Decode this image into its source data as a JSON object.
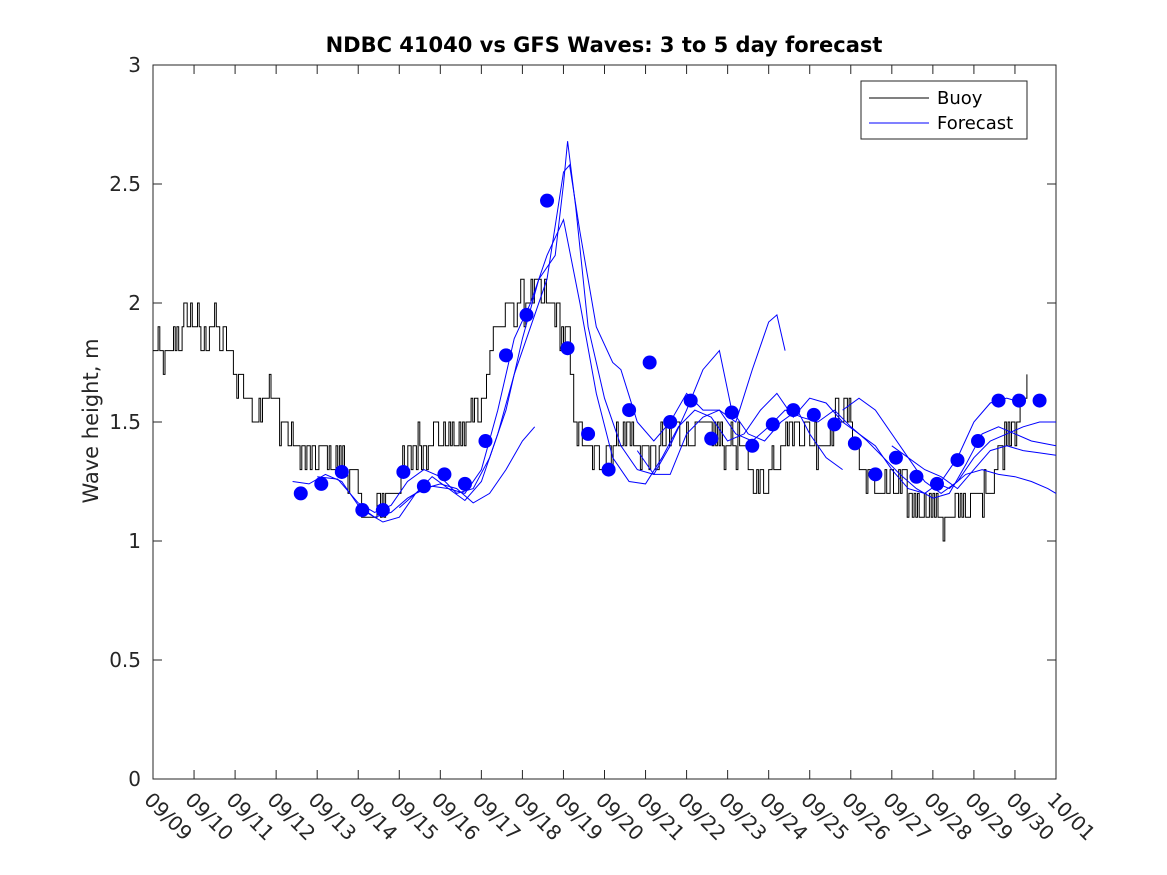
{
  "chart_data": {
    "type": "line",
    "title": "NDBC 41040 vs GFS Waves: 3 to 5 day forecast",
    "xlabel": "",
    "ylabel": "Wave height, m",
    "ylim": [
      0,
      3
    ],
    "yticks": [
      0,
      0.5,
      1,
      1.5,
      2,
      2.5,
      3
    ],
    "ytick_labels": [
      "0",
      "0.5",
      "1",
      "1.5",
      "2",
      "2.5",
      "3"
    ],
    "xlim_days": [
      0,
      22
    ],
    "xtick_labels": [
      "09/09",
      "09/10",
      "09/11",
      "09/12",
      "09/13",
      "09/14",
      "09/15",
      "09/16",
      "09/17",
      "09/18",
      "09/19",
      "09/20",
      "09/21",
      "09/22",
      "09/23",
      "09/24",
      "09/25",
      "09/26",
      "09/27",
      "09/28",
      "09/29",
      "09/30",
      "10/01"
    ],
    "legend": {
      "position": "top-right",
      "entries": [
        "Buoy",
        "Forecast"
      ]
    },
    "colors": {
      "buoy": "#000000",
      "forecast": "#0000ff"
    },
    "buoy": {
      "name": "Buoy",
      "anchors": [
        [
          0.0,
          1.82
        ],
        [
          0.3,
          1.72
        ],
        [
          0.6,
          1.85
        ],
        [
          0.9,
          1.95
        ],
        [
          1.2,
          1.85
        ],
        [
          1.5,
          1.9
        ],
        [
          1.8,
          1.82
        ],
        [
          2.1,
          1.68
        ],
        [
          2.4,
          1.55
        ],
        [
          2.7,
          1.65
        ],
        [
          3.0,
          1.55
        ],
        [
          3.3,
          1.45
        ],
        [
          3.6,
          1.35
        ],
        [
          3.9,
          1.35
        ],
        [
          4.2,
          1.35
        ],
        [
          4.5,
          1.32
        ],
        [
          4.8,
          1.3
        ],
        [
          5.0,
          1.18
        ],
        [
          5.3,
          1.1
        ],
        [
          5.6,
          1.15
        ],
        [
          5.9,
          1.22
        ],
        [
          6.2,
          1.35
        ],
        [
          6.5,
          1.4
        ],
        [
          6.8,
          1.42
        ],
        [
          7.1,
          1.45
        ],
        [
          7.4,
          1.4
        ],
        [
          7.7,
          1.5
        ],
        [
          8.0,
          1.6
        ],
        [
          8.3,
          1.85
        ],
        [
          8.6,
          1.95
        ],
        [
          8.9,
          2.0
        ],
        [
          9.2,
          2.05
        ],
        [
          9.5,
          2.0
        ],
        [
          9.8,
          1.95
        ],
        [
          10.1,
          1.85
        ],
        [
          10.3,
          1.5
        ],
        [
          10.5,
          1.38
        ],
        [
          10.7,
          1.35
        ],
        [
          10.9,
          1.35
        ],
        [
          11.2,
          1.42
        ],
        [
          11.5,
          1.45
        ],
        [
          11.8,
          1.42
        ],
        [
          12.1,
          1.35
        ],
        [
          12.4,
          1.4
        ],
        [
          12.7,
          1.48
        ],
        [
          13.0,
          1.42
        ],
        [
          13.3,
          1.45
        ],
        [
          13.6,
          1.48
        ],
        [
          13.9,
          1.42
        ],
        [
          14.2,
          1.4
        ],
        [
          14.5,
          1.35
        ],
        [
          14.8,
          1.22
        ],
        [
          15.1,
          1.35
        ],
        [
          15.4,
          1.45
        ],
        [
          15.7,
          1.5
        ],
        [
          16.0,
          1.45
        ],
        [
          16.3,
          1.4
        ],
        [
          16.6,
          1.5
        ],
        [
          16.9,
          1.55
        ],
        [
          17.2,
          1.35
        ],
        [
          17.5,
          1.25
        ],
        [
          17.8,
          1.22
        ],
        [
          18.1,
          1.22
        ],
        [
          18.4,
          1.18
        ],
        [
          18.7,
          1.15
        ],
        [
          19.0,
          1.12
        ],
        [
          19.3,
          1.08
        ],
        [
          19.6,
          1.12
        ],
        [
          19.9,
          1.15
        ],
        [
          20.2,
          1.18
        ],
        [
          20.5,
          1.3
        ],
        [
          20.8,
          1.45
        ],
        [
          21.1,
          1.55
        ],
        [
          21.3,
          1.6
        ]
      ]
    },
    "forecast_segments": [
      [
        [
          3.4,
          1.25
        ],
        [
          3.8,
          1.24
        ],
        [
          4.2,
          1.28
        ],
        [
          4.6,
          1.25
        ],
        [
          5.0,
          1.15
        ],
        [
          5.4,
          1.1
        ],
        [
          5.8,
          1.12
        ],
        [
          6.2,
          1.18
        ],
        [
          6.6,
          1.22
        ],
        [
          7.0,
          1.24
        ],
        [
          7.4,
          1.22
        ],
        [
          7.8,
          1.16
        ],
        [
          8.2,
          1.2
        ],
        [
          8.6,
          1.3
        ],
        [
          9.0,
          1.42
        ],
        [
          9.3,
          1.48
        ]
      ],
      [
        [
          4.0,
          1.27
        ],
        [
          4.5,
          1.26
        ],
        [
          5.0,
          1.16
        ],
        [
          5.4,
          1.12
        ],
        [
          5.8,
          1.15
        ],
        [
          6.2,
          1.25
        ],
        [
          6.6,
          1.3
        ],
        [
          7.0,
          1.27
        ],
        [
          7.4,
          1.2
        ],
        [
          7.8,
          1.22
        ],
        [
          8.2,
          1.35
        ],
        [
          8.6,
          1.55
        ],
        [
          9.0,
          1.85
        ],
        [
          9.4,
          2.1
        ],
        [
          9.8,
          2.2
        ],
        [
          10.0,
          2.5
        ],
        [
          10.1,
          2.68
        ],
        [
          10.3,
          2.4
        ],
        [
          10.6,
          1.9
        ],
        [
          11.0,
          1.6
        ],
        [
          11.4,
          1.4
        ],
        [
          11.8,
          1.3
        ],
        [
          12.2,
          1.28
        ],
        [
          12.6,
          1.4
        ],
        [
          13.0,
          1.55
        ],
        [
          13.4,
          1.72
        ],
        [
          13.8,
          1.8
        ],
        [
          14.1,
          1.55
        ],
        [
          14.5,
          1.45
        ],
        [
          14.9,
          1.42
        ],
        [
          15.3,
          1.5
        ],
        [
          15.7,
          1.55
        ],
        [
          16.0,
          1.45
        ],
        [
          16.4,
          1.35
        ],
        [
          16.8,
          1.3
        ]
      ],
      [
        [
          5.2,
          1.12
        ],
        [
          5.6,
          1.08
        ],
        [
          6.0,
          1.1
        ],
        [
          6.4,
          1.2
        ],
        [
          6.8,
          1.27
        ],
        [
          7.2,
          1.22
        ],
        [
          7.6,
          1.17
        ],
        [
          8.0,
          1.25
        ],
        [
          8.4,
          1.45
        ],
        [
          8.8,
          1.7
        ],
        [
          9.2,
          1.9
        ],
        [
          9.6,
          2.1
        ],
        [
          10.0,
          2.55
        ],
        [
          10.15,
          2.58
        ],
        [
          10.4,
          2.3
        ],
        [
          10.8,
          1.9
        ],
        [
          11.2,
          1.75
        ],
        [
          11.4,
          1.72
        ],
        [
          11.8,
          1.5
        ],
        [
          12.2,
          1.42
        ],
        [
          12.6,
          1.5
        ],
        [
          13.0,
          1.62
        ],
        [
          13.4,
          1.55
        ],
        [
          13.8,
          1.55
        ],
        [
          14.2,
          1.5
        ],
        [
          14.6,
          1.72
        ],
        [
          15.0,
          1.92
        ],
        [
          15.2,
          1.95
        ],
        [
          15.4,
          1.8
        ]
      ],
      [
        [
          6.0,
          1.14
        ],
        [
          6.4,
          1.2
        ],
        [
          6.8,
          1.23
        ],
        [
          7.2,
          1.22
        ],
        [
          7.6,
          1.2
        ],
        [
          8.0,
          1.3
        ],
        [
          8.4,
          1.55
        ],
        [
          8.8,
          1.85
        ],
        [
          9.2,
          2.0
        ],
        [
          9.6,
          2.2
        ],
        [
          10.0,
          2.35
        ],
        [
          10.4,
          2.0
        ],
        [
          10.8,
          1.62
        ],
        [
          11.2,
          1.35
        ],
        [
          11.6,
          1.25
        ],
        [
          12.0,
          1.24
        ],
        [
          12.4,
          1.35
        ],
        [
          12.8,
          1.48
        ],
        [
          13.2,
          1.55
        ],
        [
          13.6,
          1.52
        ],
        [
          14.0,
          1.42
        ],
        [
          14.4,
          1.45
        ],
        [
          14.8,
          1.55
        ],
        [
          15.2,
          1.62
        ],
        [
          15.6,
          1.52
        ],
        [
          16.0,
          1.6
        ],
        [
          16.4,
          1.58
        ],
        [
          16.8,
          1.5
        ],
        [
          17.2,
          1.45
        ],
        [
          17.6,
          1.4
        ],
        [
          18.0,
          1.3
        ],
        [
          18.4,
          1.22
        ],
        [
          18.8,
          1.2
        ],
        [
          19.2,
          1.25
        ],
        [
          19.6,
          1.35
        ],
        [
          20.0,
          1.5
        ],
        [
          20.4,
          1.58
        ],
        [
          20.8,
          1.6
        ],
        [
          21.2,
          1.58
        ]
      ],
      [
        [
          11.8,
          1.38
        ],
        [
          12.2,
          1.28
        ],
        [
          12.6,
          1.28
        ],
        [
          13.0,
          1.45
        ],
        [
          13.4,
          1.52
        ],
        [
          13.8,
          1.55
        ],
        [
          14.2,
          1.45
        ],
        [
          14.6,
          1.42
        ],
        [
          15.0,
          1.48
        ],
        [
          15.4,
          1.55
        ],
        [
          15.8,
          1.52
        ],
        [
          16.2,
          1.5
        ],
        [
          16.6,
          1.55
        ],
        [
          17.0,
          1.48
        ],
        [
          17.4,
          1.42
        ],
        [
          17.8,
          1.35
        ],
        [
          18.2,
          1.28
        ],
        [
          18.6,
          1.22
        ],
        [
          19.0,
          1.18
        ],
        [
          19.4,
          1.2
        ],
        [
          19.8,
          1.32
        ],
        [
          20.2,
          1.45
        ],
        [
          20.6,
          1.48
        ],
        [
          21.0,
          1.45
        ],
        [
          21.4,
          1.42
        ],
        [
          22.0,
          1.4
        ]
      ],
      [
        [
          16.8,
          1.55
        ],
        [
          17.2,
          1.6
        ],
        [
          17.6,
          1.55
        ],
        [
          18.0,
          1.45
        ],
        [
          18.4,
          1.35
        ],
        [
          18.8,
          1.25
        ],
        [
          19.2,
          1.2
        ],
        [
          19.6,
          1.25
        ],
        [
          20.0,
          1.35
        ],
        [
          20.4,
          1.42
        ],
        [
          20.8,
          1.45
        ],
        [
          21.2,
          1.48
        ],
        [
          21.6,
          1.5
        ],
        [
          22.0,
          1.5
        ]
      ],
      [
        [
          18.0,
          1.4
        ],
        [
          18.4,
          1.35
        ],
        [
          18.8,
          1.3
        ],
        [
          19.2,
          1.27
        ],
        [
          19.6,
          1.22
        ],
        [
          20.0,
          1.3
        ],
        [
          20.4,
          1.38
        ],
        [
          20.8,
          1.4
        ],
        [
          21.2,
          1.38
        ],
        [
          21.6,
          1.37
        ],
        [
          22.0,
          1.36
        ]
      ],
      [
        [
          19.0,
          1.25
        ],
        [
          19.4,
          1.22
        ],
        [
          19.8,
          1.28
        ],
        [
          20.2,
          1.3
        ],
        [
          20.6,
          1.28
        ],
        [
          21.0,
          1.27
        ],
        [
          21.4,
          1.25
        ],
        [
          21.8,
          1.22
        ],
        [
          22.0,
          1.2
        ]
      ]
    ],
    "forecast_points": {
      "x": [
        3.6,
        4.1,
        4.6,
        5.1,
        5.6,
        6.1,
        6.6,
        7.1,
        7.6,
        8.1,
        8.6,
        9.1,
        9.6,
        10.1,
        10.6,
        11.1,
        11.6,
        12.1,
        12.6,
        13.1,
        13.6,
        14.1,
        14.6,
        15.1,
        15.6,
        16.1,
        16.6,
        17.1,
        17.6,
        18.1,
        18.6,
        19.1,
        19.6,
        20.1,
        20.6,
        21.1,
        21.6
      ],
      "y": [
        1.2,
        1.24,
        1.29,
        1.13,
        1.13,
        1.29,
        1.23,
        1.28,
        1.24,
        1.42,
        1.78,
        1.95,
        2.43,
        1.81,
        1.45,
        1.3,
        1.55,
        1.75,
        1.5,
        1.59,
        1.43,
        1.54,
        1.4,
        1.49,
        1.55,
        1.53,
        1.49,
        1.41,
        1.28,
        1.35,
        1.27,
        1.24,
        1.34,
        1.42,
        1.59,
        1.59,
        1.59
      ]
    }
  }
}
